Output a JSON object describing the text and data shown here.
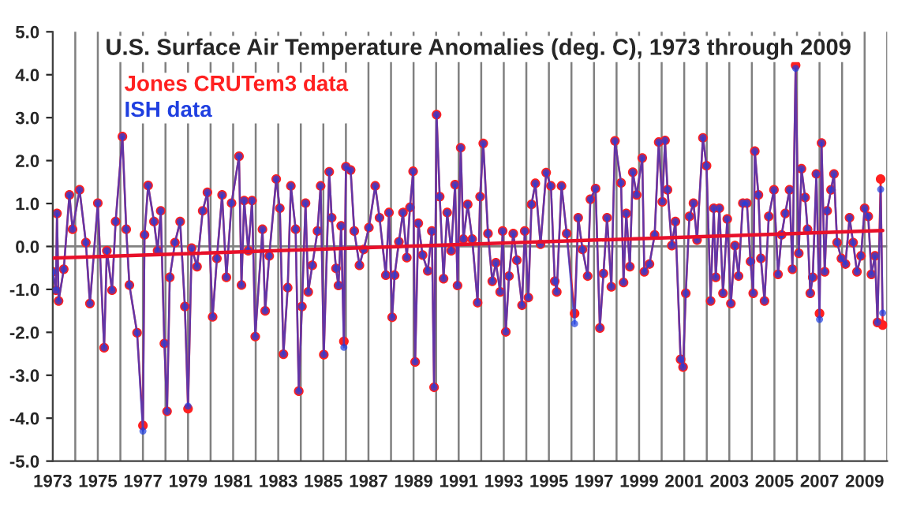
{
  "chart_data": {
    "type": "line",
    "title": "U.S. Surface Air Temperature Anomalies (deg. C), 1973 through 2009",
    "x": [
      1973.0,
      1973.14,
      1973.19,
      1973.26,
      1973.49,
      1973.74,
      1973.88,
      1974.19,
      1974.47,
      1974.65,
      1975.0,
      1975.28,
      1975.4,
      1975.63,
      1975.79,
      1976.09,
      1976.26,
      1976.4,
      1976.74,
      1977.0,
      1977.07,
      1977.23,
      1977.49,
      1977.65,
      1977.79,
      1977.95,
      1978.07,
      1978.19,
      1978.42,
      1978.65,
      1978.86,
      1979.0,
      1979.16,
      1979.4,
      1979.65,
      1979.86,
      1980.09,
      1980.28,
      1980.51,
      1980.7,
      1980.93,
      1981.26,
      1981.37,
      1981.49,
      1981.67,
      1981.84,
      1981.98,
      1982.3,
      1982.42,
      1982.6,
      1982.91,
      1983.07,
      1983.23,
      1983.42,
      1983.56,
      1983.77,
      1983.91,
      1984.05,
      1984.21,
      1984.33,
      1984.51,
      1984.74,
      1984.88,
      1985.02,
      1985.26,
      1985.37,
      1985.56,
      1985.67,
      1985.79,
      1985.91,
      1986.0,
      1986.21,
      1986.37,
      1986.6,
      1986.79,
      1987.02,
      1987.3,
      1987.49,
      1987.77,
      1987.91,
      1988.05,
      1988.16,
      1988.35,
      1988.53,
      1988.7,
      1988.84,
      1988.98,
      1989.07,
      1989.21,
      1989.4,
      1989.63,
      1989.81,
      1989.91,
      1990.02,
      1990.16,
      1990.33,
      1990.49,
      1990.67,
      1990.84,
      1990.95,
      1991.09,
      1991.21,
      1991.4,
      1991.6,
      1991.84,
      1991.95,
      1992.09,
      1992.3,
      1992.49,
      1992.65,
      1992.84,
      1992.95,
      1993.09,
      1993.23,
      1993.42,
      1993.58,
      1993.81,
      1993.93,
      1994.09,
      1994.23,
      1994.4,
      1994.63,
      1994.88,
      1995.09,
      1995.26,
      1995.35,
      1995.56,
      1995.79,
      1996.14,
      1996.3,
      1996.49,
      1996.72,
      1996.84,
      1997.07,
      1997.26,
      1997.42,
      1997.58,
      1997.77,
      1997.93,
      1998.2,
      1998.31,
      1998.43,
      1998.59,
      1998.72,
      1998.89,
      1999.14,
      1999.23,
      1999.46,
      1999.69,
      1999.87,
      2000.03,
      2000.15,
      2000.26,
      2000.45,
      2000.61,
      2000.84,
      2000.95,
      2001.07,
      2001.23,
      2001.41,
      2001.57,
      2001.83,
      2001.99,
      2002.17,
      2002.31,
      2002.4,
      2002.56,
      2002.72,
      2002.91,
      2003.07,
      2003.25,
      2003.41,
      2003.6,
      2003.78,
      2003.94,
      2004.06,
      2004.13,
      2004.29,
      2004.4,
      2004.56,
      2004.75,
      2004.98,
      2005.16,
      2005.32,
      2005.48,
      2005.67,
      2005.8,
      2005.94,
      2006.08,
      2006.2,
      2006.36,
      2006.47,
      2006.59,
      2006.7,
      2006.86,
      2007.0,
      2007.09,
      2007.23,
      2007.34,
      2007.51,
      2007.64,
      2007.78,
      2007.97,
      2008.15,
      2008.33,
      2008.49,
      2008.66,
      2008.84,
      2009.0,
      2009.16,
      2009.3,
      2009.46,
      2009.57,
      2009.71,
      2009.8
    ],
    "series": [
      {
        "name": "ISH data",
        "color": "#1f3fe0",
        "marker": "circle",
        "values": [
          -0.59,
          -1.02,
          0.77,
          -1.27,
          -0.53,
          1.2,
          0.4,
          1.32,
          0.09,
          -1.33,
          1.01,
          -2.36,
          -0.1,
          -1.02,
          0.58,
          2.56,
          0.4,
          -0.9,
          -2.01,
          -4.3,
          0.27,
          1.42,
          0.58,
          -0.1,
          0.83,
          -2.26,
          -3.84,
          -0.72,
          0.09,
          0.58,
          -1.4,
          -3.72,
          -0.04,
          -0.47,
          0.83,
          1.26,
          -1.64,
          -0.28,
          1.2,
          -0.72,
          1.01,
          2.1,
          -0.9,
          1.07,
          -0.1,
          1.07,
          -2.1,
          0.4,
          -1.5,
          -0.22,
          1.57,
          0.89,
          -2.51,
          -0.96,
          1.41,
          0.4,
          -3.37,
          -1.4,
          1.01,
          -1.06,
          -0.44,
          0.36,
          1.41,
          -2.52,
          1.74,
          0.67,
          -0.51,
          -0.91,
          0.48,
          -2.35,
          1.86,
          1.78,
          0.36,
          -0.44,
          -0.07,
          0.44,
          1.41,
          0.67,
          -0.67,
          0.79,
          -1.65,
          -0.67,
          0.11,
          0.79,
          -0.26,
          0.91,
          1.75,
          -2.69,
          0.54,
          -0.2,
          -0.57,
          0.36,
          -3.28,
          3.07,
          1.16,
          -0.75,
          0.79,
          -0.1,
          1.44,
          -0.91,
          2.3,
          0.17,
          0.98,
          0.17,
          -1.31,
          1.16,
          2.4,
          0.3,
          -0.81,
          -0.38,
          -1.06,
          0.36,
          -1.99,
          -0.69,
          0.3,
          -0.32,
          -1.37,
          0.36,
          -1.19,
          0.98,
          1.47,
          0.05,
          1.72,
          1.41,
          -0.81,
          -1.06,
          1.41,
          0.3,
          -1.8,
          0.67,
          -0.07,
          -0.69,
          1.1,
          1.35,
          -1.9,
          -0.63,
          0.67,
          -0.94,
          2.46,
          1.48,
          -0.84,
          0.77,
          -0.47,
          1.73,
          1.2,
          2.06,
          -0.59,
          -0.41,
          0.27,
          2.43,
          1.04,
          2.47,
          1.32,
          0.02,
          0.58,
          -2.63,
          -2.81,
          -1.09,
          0.7,
          1.01,
          0.15,
          2.53,
          1.88,
          -1.27,
          0.89,
          -0.72,
          0.89,
          -1.09,
          0.64,
          -1.33,
          0.02,
          -0.69,
          1.01,
          1.01,
          -0.35,
          -1.09,
          2.22,
          1.2,
          -0.28,
          -1.27,
          0.7,
          1.32,
          -0.65,
          0.27,
          0.77,
          1.32,
          -0.53,
          4.15,
          -0.16,
          1.81,
          1.14,
          0.4,
          -1.09,
          -0.72,
          1.69,
          -1.7,
          2.41,
          -0.59,
          0.83,
          1.32,
          1.69,
          0.09,
          -0.28,
          -0.41,
          0.67,
          0.09,
          -0.59,
          -0.22,
          0.89,
          0.7,
          -0.65,
          -0.22,
          -1.77,
          1.33,
          -1.55
        ]
      },
      {
        "name": "Jones CRUTem3 data",
        "color": "#ff2020",
        "marker": "circle",
        "values": [
          -0.59,
          -1.02,
          0.77,
          -1.27,
          -0.53,
          1.2,
          0.4,
          1.32,
          0.09,
          -1.33,
          1.01,
          -2.36,
          -0.1,
          -1.02,
          0.58,
          2.56,
          0.4,
          -0.9,
          -2.01,
          -4.17,
          0.27,
          1.42,
          0.58,
          -0.1,
          0.83,
          -2.26,
          -3.84,
          -0.72,
          0.09,
          0.58,
          -1.4,
          -3.78,
          -0.04,
          -0.47,
          0.83,
          1.26,
          -1.64,
          -0.28,
          1.2,
          -0.72,
          1.01,
          2.1,
          -0.9,
          1.07,
          -0.1,
          1.07,
          -2.1,
          0.4,
          -1.5,
          -0.22,
          1.57,
          0.89,
          -2.51,
          -0.96,
          1.41,
          0.4,
          -3.37,
          -1.4,
          1.01,
          -1.06,
          -0.44,
          0.36,
          1.41,
          -2.52,
          1.74,
          0.67,
          -0.51,
          -0.91,
          0.48,
          -2.21,
          1.86,
          1.78,
          0.36,
          -0.44,
          -0.07,
          0.44,
          1.41,
          0.67,
          -0.67,
          0.79,
          -1.65,
          -0.67,
          0.11,
          0.79,
          -0.26,
          0.91,
          1.75,
          -2.69,
          0.54,
          -0.2,
          -0.57,
          0.36,
          -3.28,
          3.07,
          1.16,
          -0.75,
          0.79,
          -0.1,
          1.44,
          -0.91,
          2.3,
          0.17,
          0.98,
          0.17,
          -1.31,
          1.16,
          2.4,
          0.3,
          -0.81,
          -0.38,
          -1.06,
          0.36,
          -1.99,
          -0.69,
          0.3,
          -0.32,
          -1.37,
          0.36,
          -1.19,
          0.98,
          1.47,
          0.05,
          1.72,
          1.41,
          -0.81,
          -1.06,
          1.41,
          0.3,
          -1.56,
          0.67,
          -0.07,
          -0.69,
          1.1,
          1.35,
          -1.9,
          -0.63,
          0.67,
          -0.94,
          2.46,
          1.48,
          -0.84,
          0.77,
          -0.47,
          1.73,
          1.2,
          2.06,
          -0.59,
          -0.41,
          0.27,
          2.43,
          1.04,
          2.47,
          1.32,
          0.02,
          0.58,
          -2.63,
          -2.81,
          -1.09,
          0.7,
          1.01,
          0.15,
          2.53,
          1.88,
          -1.27,
          0.89,
          -0.72,
          0.89,
          -1.09,
          0.64,
          -1.33,
          0.02,
          -0.69,
          1.01,
          1.01,
          -0.35,
          -1.09,
          2.22,
          1.2,
          -0.28,
          -1.27,
          0.7,
          1.32,
          -0.65,
          0.27,
          0.77,
          1.32,
          -0.53,
          4.22,
          -0.16,
          1.81,
          1.14,
          0.4,
          -1.09,
          -0.72,
          1.69,
          -1.56,
          2.41,
          -0.59,
          0.83,
          1.32,
          1.69,
          0.09,
          -0.28,
          -0.41,
          0.67,
          0.09,
          -0.59,
          -0.22,
          0.89,
          0.7,
          -0.65,
          -0.22,
          -1.77,
          1.57,
          -1.83
        ]
      },
      {
        "type": "line",
        "color": "#e8102a",
        "marker": "none",
        "x": [
          1973.0,
          2009.8
        ],
        "values": [
          -0.27,
          0.37
        ]
      }
    ],
    "ref_lines": [
      {
        "axis": "y",
        "value": 0,
        "color": "#808080"
      }
    ],
    "xlim": [
      1973,
      2010
    ],
    "xticks": [
      1973,
      {
        "value": 1974,
        "label": null
      },
      1975,
      {
        "value": 1976,
        "label": null
      },
      1977,
      {
        "value": 1978,
        "label": null
      },
      1979,
      {
        "value": 1980,
        "label": null
      },
      1981,
      {
        "value": 1982,
        "label": null
      },
      1983,
      {
        "value": 1984,
        "label": null
      },
      1985,
      {
        "value": 1986,
        "label": null
      },
      1987,
      {
        "value": 1988,
        "label": null
      },
      1989,
      {
        "value": 1990,
        "label": null
      },
      1991,
      {
        "value": 1992,
        "label": null
      },
      1993,
      {
        "value": 1994,
        "label": null
      },
      1995,
      {
        "value": 1996,
        "label": null
      },
      1997,
      {
        "value": 1998,
        "label": null
      },
      1999,
      {
        "value": 2000,
        "label": null
      },
      2001,
      {
        "value": 2002,
        "label": null
      },
      2003,
      {
        "value": 2004,
        "label": null
      },
      2005,
      {
        "value": 2006,
        "label": null
      },
      2007,
      {
        "value": 2008,
        "label": null
      },
      2009,
      {
        "value": 2010,
        "label": null
      }
    ],
    "ylim": [
      -5,
      5
    ],
    "yticks": [
      {
        "value": -5,
        "label": "-5.0"
      },
      {
        "value": -4,
        "label": "-4.0"
      },
      {
        "value": -3,
        "label": "-3.0"
      },
      {
        "value": -2,
        "label": "-2.0"
      },
      {
        "value": -1,
        "label": "-1.0"
      },
      {
        "value": 0,
        "label": "0.0"
      },
      {
        "value": 1,
        "label": "1.0"
      },
      {
        "value": 2,
        "label": "2.0"
      },
      {
        "value": 3,
        "label": "3.0"
      },
      {
        "value": 4,
        "label": "4.0"
      },
      {
        "value": 5,
        "label": "5.0"
      }
    ],
    "grid": "x",
    "legend": "top left"
  }
}
